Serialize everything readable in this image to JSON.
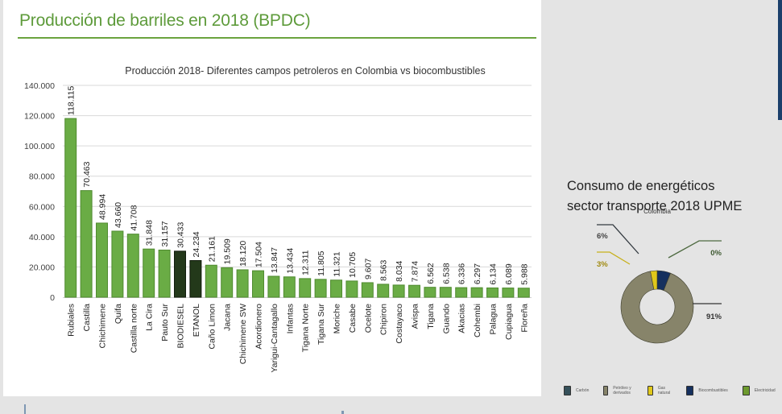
{
  "slide": {
    "title": "Producción de barriles en 2018 (BPDC)",
    "right_title_lines": [
      "Consumo de energéticos",
      "sector transporte 2018 UPME"
    ]
  },
  "colors": {
    "bar_green": "#6aac45",
    "bar_dark": "#23391a",
    "title_green": "#5e9b3b",
    "accent_blue": "#1b3f6b"
  },
  "chart_data": [
    {
      "type": "bar",
      "title": "Producción 2018- Diferentes campos petroleros en Colombia vs biocombustibles",
      "xlabel": "",
      "ylabel": "",
      "ylim": [
        0,
        140000
      ],
      "yticks": [
        0,
        20000,
        40000,
        60000,
        80000,
        100000,
        120000,
        140000
      ],
      "ytick_labels": [
        "0",
        "20.000",
        "40.000",
        "60.000",
        "80.000",
        "100.000",
        "120.000",
        "140.000"
      ],
      "grid": true,
      "categories": [
        "Rubiales",
        "Castilla",
        "Chichimene",
        "Quifa",
        "Castilla norte",
        "La Cira",
        "Pauto Sur",
        "BIODIESEL",
        "ETANOL",
        "Caño Limon",
        "Jacana",
        "Chichimene SW",
        "Acordionero",
        "Yarigui-Cantagallo",
        "Infantas",
        "Tigana Norte",
        "Tigana Sur",
        "Moriche",
        "Casabe",
        "Ocelote",
        "Chipiron",
        "Costayaco",
        "Avispa",
        "Tigana",
        "Guando",
        "Akacias",
        "Cohembi",
        "Palagua",
        "Cupiagua",
        "Floreña"
      ],
      "values": [
        118115,
        70463,
        48994,
        43660,
        41708,
        31848,
        31157,
        30433,
        24234,
        21161,
        19509,
        18120,
        17504,
        13847,
        13434,
        12311,
        11805,
        11321,
        10705,
        9607,
        8563,
        8034,
        7874,
        6562,
        6538,
        6336,
        6297,
        6134,
        6089,
        5988
      ],
      "data_labels": [
        "118.115",
        "70.463",
        "48.994",
        "43.660",
        "41.708",
        "31.848",
        "31.157",
        "30.433",
        "24.234",
        "21.161",
        "19.509",
        "18.120",
        "17.504",
        "13.847",
        "13.434",
        "12.311",
        "11.805",
        "11.321",
        "10.705",
        "9.607",
        "8.563",
        "8.034",
        "7.874",
        "6.562",
        "6.538",
        "6.336",
        "6.297",
        "6.134",
        "6.089",
        "5.988"
      ],
      "highlight": [
        "BIODIESEL",
        "ETANOL"
      ],
      "legend": "none"
    },
    {
      "type": "pie",
      "subtype": "donut",
      "title": "Colombia",
      "labels": [
        "Carbón",
        "Petróleo y derivados",
        "Gas natural",
        "Biocombustibles",
        "Electricidad"
      ],
      "values": [
        0,
        91,
        3,
        6,
        0
      ],
      "data_labels": [
        "",
        "91%",
        "3%",
        "6%",
        "0%"
      ],
      "colors": [
        "#35505a",
        "#87846a",
        "#e0c81a",
        "#15305e",
        "#6d9a2e"
      ],
      "legend": "bottom"
    }
  ]
}
